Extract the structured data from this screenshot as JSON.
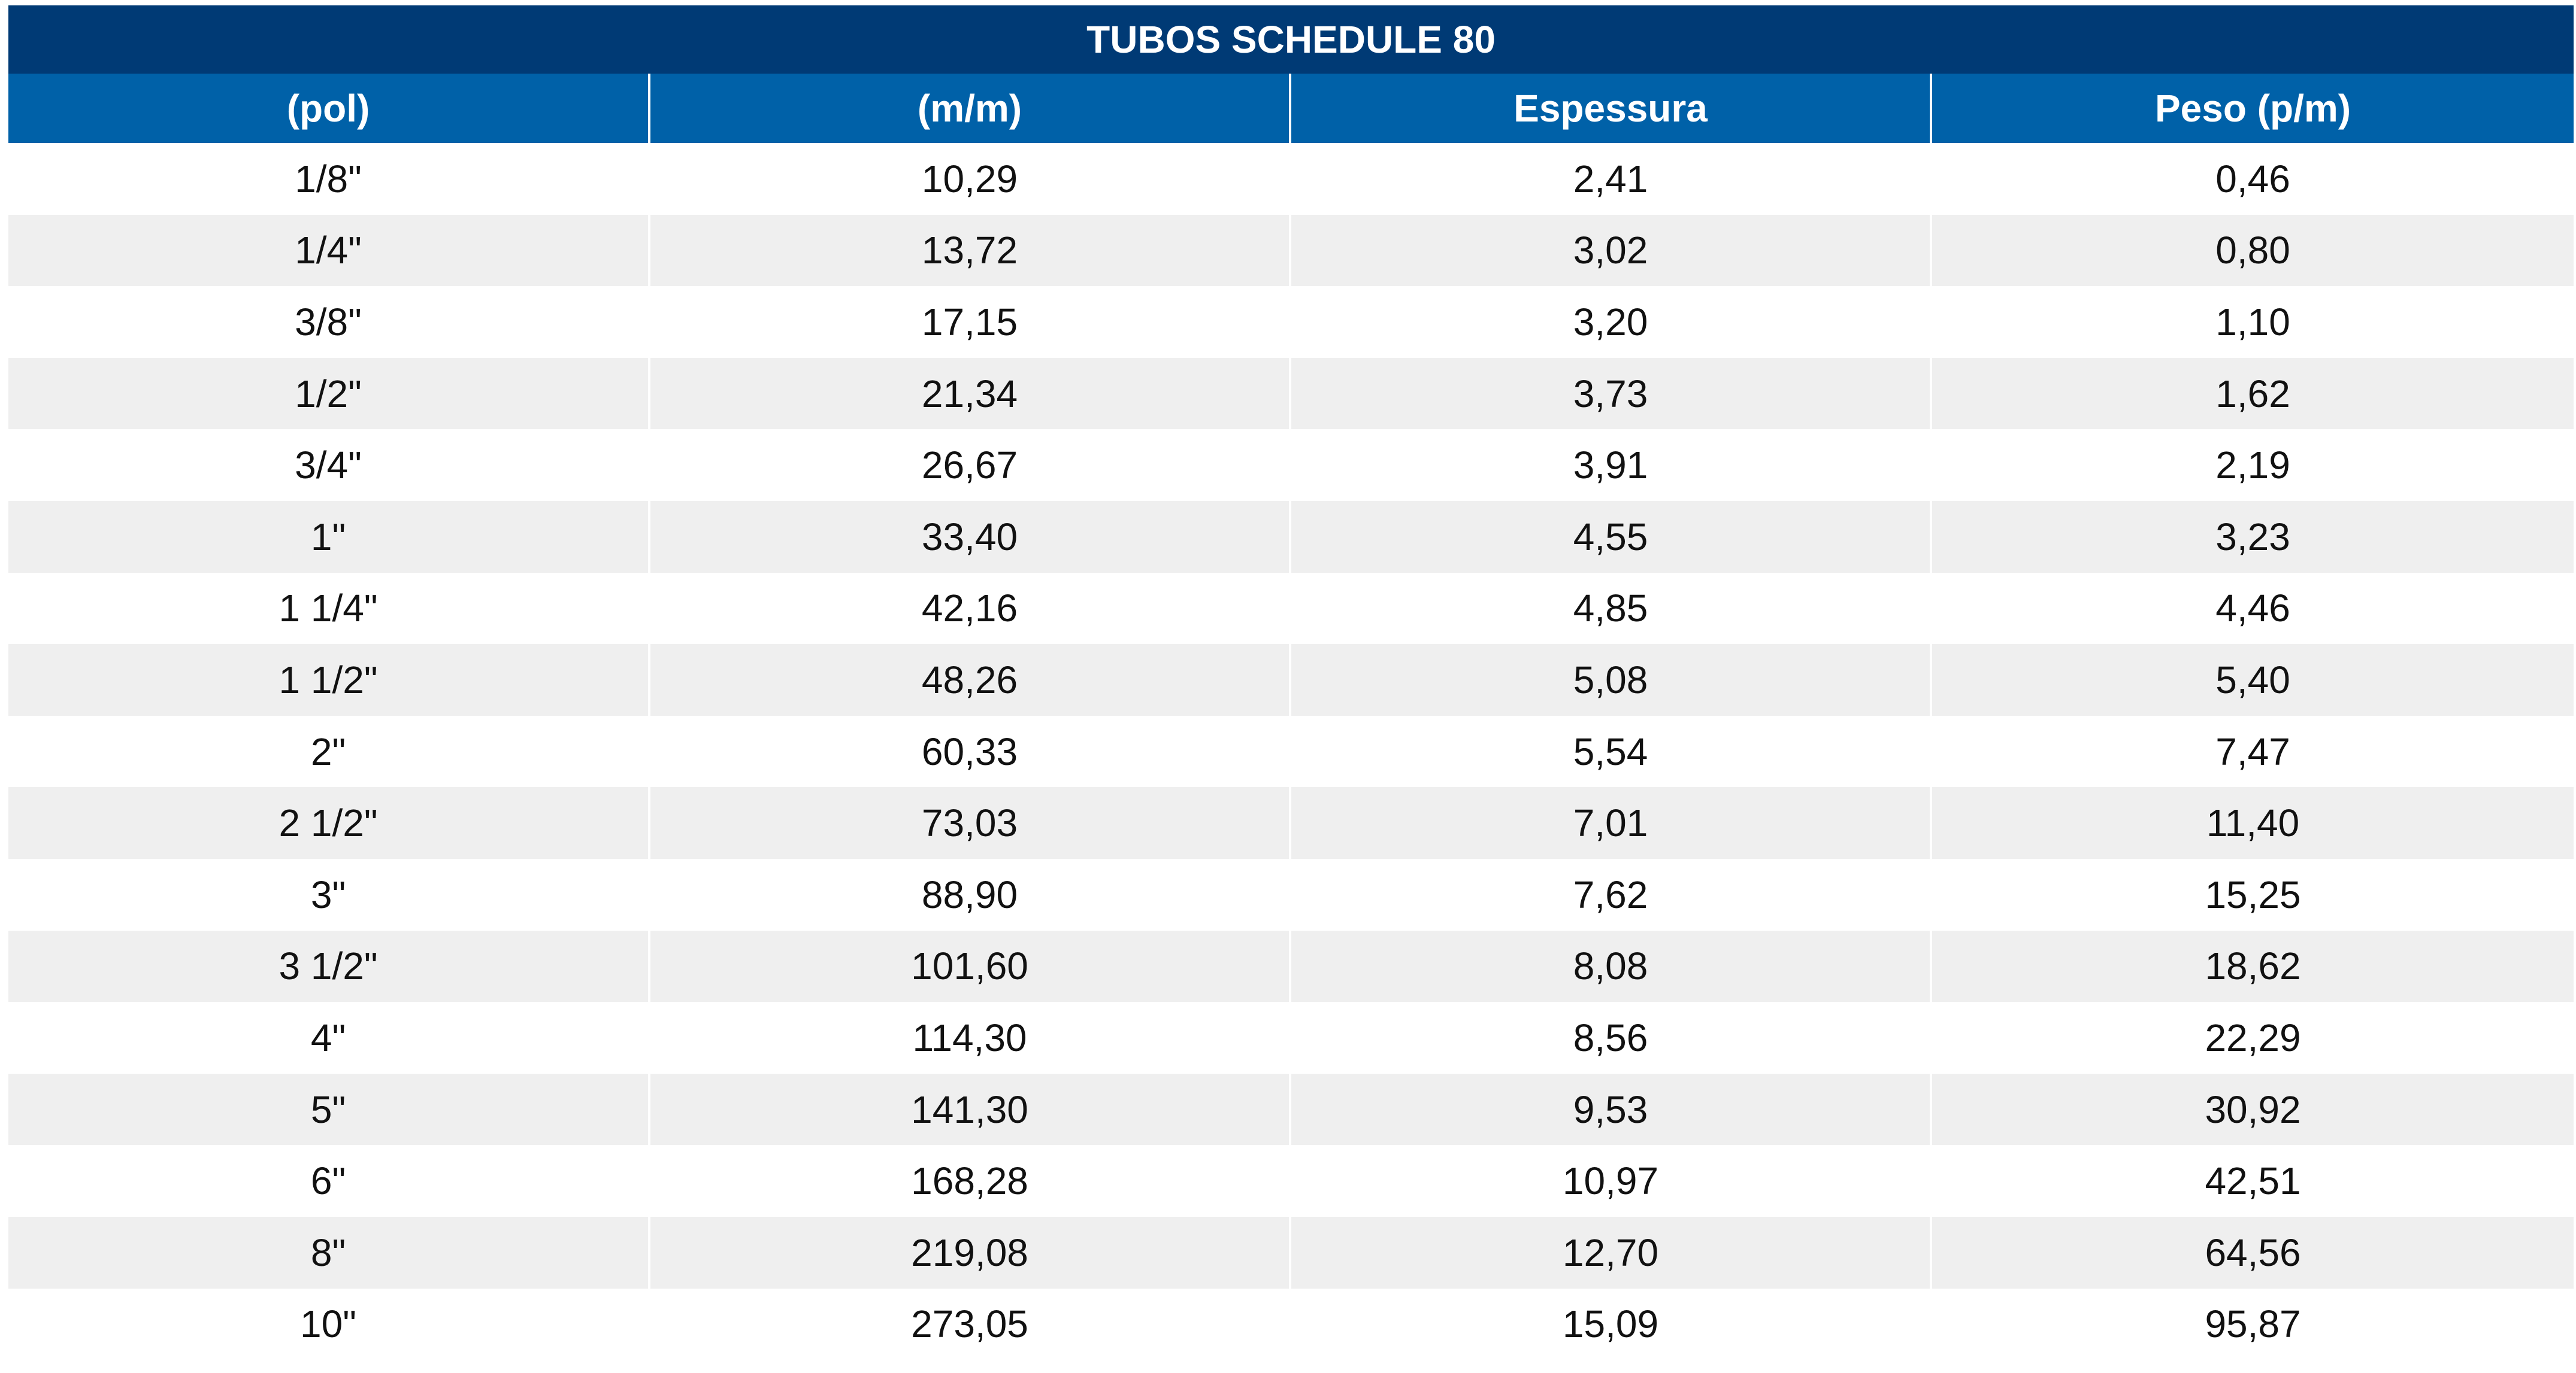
{
  "table": {
    "title": "TUBOS SCHEDULE 80",
    "headers": [
      "(pol)",
      "(m/m)",
      "Espessura",
      "Peso (p/m)"
    ],
    "rows": [
      [
        "1/8\"",
        "10,29",
        "2,41",
        "0,46"
      ],
      [
        "1/4\"",
        "13,72",
        "3,02",
        "0,80"
      ],
      [
        "3/8\"",
        "17,15",
        "3,20",
        "1,10"
      ],
      [
        "1/2\"",
        "21,34",
        "3,73",
        "1,62"
      ],
      [
        "3/4\"",
        "26,67",
        "3,91",
        "2,19"
      ],
      [
        "1\"",
        "33,40",
        "4,55",
        "3,23"
      ],
      [
        "1 1/4\"",
        "42,16",
        "4,85",
        "4,46"
      ],
      [
        "1 1/2\"",
        "48,26",
        "5,08",
        "5,40"
      ],
      [
        "2\"",
        "60,33",
        "5,54",
        "7,47"
      ],
      [
        "2 1/2\"",
        "73,03",
        "7,01",
        "11,40"
      ],
      [
        "3\"",
        "88,90",
        "7,62",
        "15,25"
      ],
      [
        "3 1/2\"",
        "101,60",
        "8,08",
        "18,62"
      ],
      [
        "4\"",
        "114,30",
        "8,56",
        "22,29"
      ],
      [
        "5\"",
        "141,30",
        "9,53",
        "30,92"
      ],
      [
        "6\"",
        "168,28",
        "10,97",
        "42,51"
      ],
      [
        "8\"",
        "219,08",
        "12,70",
        "64,56"
      ],
      [
        "10\"",
        "273,05",
        "15,09",
        "95,87"
      ]
    ]
  },
  "colors": {
    "title_bg": "#003a75",
    "header_bg": "#0061a8",
    "stripe_bg": "#efefef",
    "text": "#111111"
  }
}
